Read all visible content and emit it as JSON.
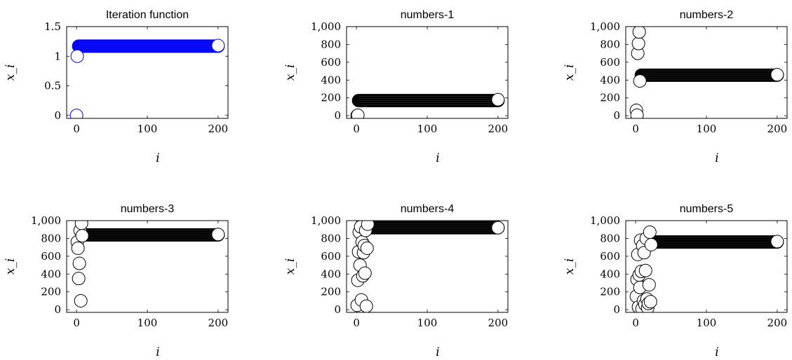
{
  "chart_data": [
    {
      "type": "scatter",
      "title": "Iteration function",
      "xlabel": "i",
      "ylabel": "x_i",
      "xlim": [
        -14,
        214
      ],
      "ylim": [
        -0.05,
        1.5
      ],
      "xticks": [
        0,
        100,
        200
      ],
      "yticks": [
        0,
        0.5,
        1,
        1.5
      ],
      "ytick_labels": [
        "0",
        "0.5",
        "1",
        "1.5"
      ],
      "marker_face": "#ffffff",
      "marker_edge": "#0000ff",
      "band_color": "#0000ff",
      "band": {
        "x_start": 3,
        "x_end": 200,
        "y": 1.17
      },
      "points": [
        {
          "x": 0,
          "y": 0
        },
        {
          "x": 1,
          "y": 1
        },
        {
          "x": 200,
          "y": 1.18
        }
      ]
    },
    {
      "type": "scatter",
      "title": "numbers-1",
      "xlabel": "i",
      "ylabel": "x_i",
      "xlim": [
        -14,
        214
      ],
      "ylim": [
        -30,
        1000
      ],
      "xticks": [
        0,
        100,
        200
      ],
      "yticks": [
        0,
        200,
        400,
        600,
        800,
        1000
      ],
      "ytick_labels": [
        "0",
        "200",
        "400",
        "600",
        "800",
        "1,000"
      ],
      "marker_face": "#ffffff",
      "marker_edge": "#000000",
      "band_color": "#000000",
      "band": {
        "x_start": 3,
        "x_end": 200,
        "y": 170
      },
      "points": [
        {
          "x": 1,
          "y": 0
        },
        {
          "x": 2,
          "y": 5
        },
        {
          "x": 200,
          "y": 180
        }
      ]
    },
    {
      "type": "scatter",
      "title": "numbers-2",
      "xlabel": "i",
      "ylabel": "x_i",
      "xlim": [
        -14,
        214
      ],
      "ylim": [
        -30,
        1000
      ],
      "xticks": [
        0,
        100,
        200
      ],
      "yticks": [
        0,
        200,
        400,
        600,
        800,
        1000
      ],
      "ytick_labels": [
        "0",
        "200",
        "400",
        "600",
        "800",
        "1,000"
      ],
      "marker_face": "#ffffff",
      "marker_edge": "#000000",
      "band_color": "#000000",
      "band": {
        "x_start": 8,
        "x_end": 200,
        "y": 455
      },
      "points": [
        {
          "x": 1,
          "y": 60
        },
        {
          "x": 2,
          "y": 5
        },
        {
          "x": 3,
          "y": 700
        },
        {
          "x": 4,
          "y": 810
        },
        {
          "x": 5,
          "y": 940
        },
        {
          "x": 6,
          "y": 390
        },
        {
          "x": 200,
          "y": 460
        }
      ]
    },
    {
      "type": "scatter",
      "title": "numbers-3",
      "xlabel": "i",
      "ylabel": "x_i",
      "xlim": [
        -14,
        214
      ],
      "ylim": [
        -30,
        1000
      ],
      "xticks": [
        0,
        100,
        200
      ],
      "yticks": [
        0,
        200,
        400,
        600,
        800,
        1000
      ],
      "ytick_labels": [
        "0",
        "200",
        "400",
        "600",
        "800",
        "1,000"
      ],
      "marker_face": "#ffffff",
      "marker_edge": "#000000",
      "band_color": "#000000",
      "band": {
        "x_start": 9,
        "x_end": 200,
        "y": 840
      },
      "points": [
        {
          "x": 1,
          "y": 760
        },
        {
          "x": 2,
          "y": 690
        },
        {
          "x": 3,
          "y": 350
        },
        {
          "x": 4,
          "y": 520
        },
        {
          "x": 5,
          "y": 890
        },
        {
          "x": 6,
          "y": 100
        },
        {
          "x": 7,
          "y": 970
        },
        {
          "x": 8,
          "y": 830
        },
        {
          "x": 200,
          "y": 845
        }
      ]
    },
    {
      "type": "scatter",
      "title": "numbers-4",
      "xlabel": "i",
      "ylabel": "x_i",
      "xlim": [
        -14,
        214
      ],
      "ylim": [
        -30,
        1000
      ],
      "xticks": [
        0,
        100,
        200
      ],
      "yticks": [
        0,
        200,
        400,
        600,
        800,
        1000
      ],
      "ytick_labels": [
        "0",
        "200",
        "400",
        "600",
        "800",
        "1,000"
      ],
      "marker_face": "#ffffff",
      "marker_edge": "#000000",
      "band_color": "#000000",
      "band": {
        "x_start": 17,
        "x_end": 200,
        "y": 920
      },
      "points": [
        {
          "x": 1,
          "y": 50
        },
        {
          "x": 2,
          "y": 330
        },
        {
          "x": 3,
          "y": 650
        },
        {
          "x": 4,
          "y": 870
        },
        {
          "x": 5,
          "y": 500
        },
        {
          "x": 6,
          "y": 930
        },
        {
          "x": 7,
          "y": 110
        },
        {
          "x": 8,
          "y": 760
        },
        {
          "x": 9,
          "y": 380
        },
        {
          "x": 10,
          "y": 640
        },
        {
          "x": 11,
          "y": 720
        },
        {
          "x": 12,
          "y": 410
        },
        {
          "x": 13,
          "y": 890
        },
        {
          "x": 14,
          "y": 40
        },
        {
          "x": 15,
          "y": 690
        },
        {
          "x": 16,
          "y": 960
        },
        {
          "x": 200,
          "y": 920
        }
      ]
    },
    {
      "type": "scatter",
      "title": "numbers-5",
      "xlabel": "i",
      "ylabel": "x_i",
      "xlim": [
        -14,
        214
      ],
      "ylim": [
        -30,
        1000
      ],
      "xticks": [
        0,
        100,
        200
      ],
      "yticks": [
        0,
        200,
        400,
        600,
        800,
        1000
      ],
      "ytick_labels": [
        "0",
        "200",
        "400",
        "600",
        "800",
        "1,000"
      ],
      "marker_face": "#ffffff",
      "marker_edge": "#000000",
      "band_color": "#000000",
      "band": {
        "x_start": 23,
        "x_end": 200,
        "y": 760
      },
      "points": [
        {
          "x": 1,
          "y": 150
        },
        {
          "x": 2,
          "y": 340
        },
        {
          "x": 3,
          "y": 620
        },
        {
          "x": 4,
          "y": 30
        },
        {
          "x": 5,
          "y": 390
        },
        {
          "x": 6,
          "y": 250
        },
        {
          "x": 7,
          "y": 780
        },
        {
          "x": 8,
          "y": 430
        },
        {
          "x": 9,
          "y": 10
        },
        {
          "x": 10,
          "y": 720
        },
        {
          "x": 11,
          "y": 100
        },
        {
          "x": 12,
          "y": 640
        },
        {
          "x": 13,
          "y": 60
        },
        {
          "x": 14,
          "y": 440
        },
        {
          "x": 15,
          "y": 800
        },
        {
          "x": 16,
          "y": 120
        },
        {
          "x": 17,
          "y": 20
        },
        {
          "x": 18,
          "y": 70
        },
        {
          "x": 19,
          "y": 280
        },
        {
          "x": 20,
          "y": 870
        },
        {
          "x": 21,
          "y": 90
        },
        {
          "x": 22,
          "y": 730
        },
        {
          "x": 200,
          "y": 765
        }
      ]
    }
  ]
}
